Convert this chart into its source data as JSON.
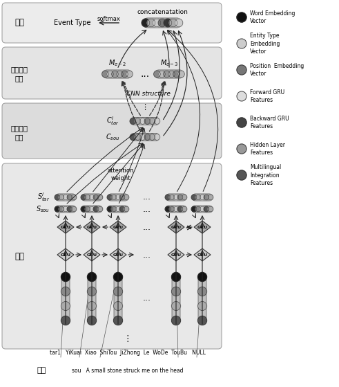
{
  "white": "#ffffff",
  "legend_items": [
    {
      "label": "Word Embedding\nVector",
      "color": "#111111"
    },
    {
      "label": "Entity Type\nEmbedding\nVector",
      "color": "#cccccc"
    },
    {
      "label": "Position  Embedding\nVector",
      "color": "#777777"
    },
    {
      "label": "Forward GRU\nFeatures",
      "color": "#dddddd"
    },
    {
      "label": "Backward GRU\nFeatures",
      "color": "#444444"
    },
    {
      "label": "Hidden Layer\nFeatures",
      "color": "#999999"
    },
    {
      "label": "Multilingual\nIntegration\nFeatures",
      "color": "#555555"
    }
  ],
  "section_bg": [
    "#e8e8e8",
    "#dcdcdc",
    "#d8d8d8",
    "#e0e0e0"
  ],
  "tar_line": "tar1   YiKuai  Xiao  ShiTou  JiZhong  Le  WoDe  TouBu   NULL",
  "sou_line": "sou   A small stone struck me on the head"
}
